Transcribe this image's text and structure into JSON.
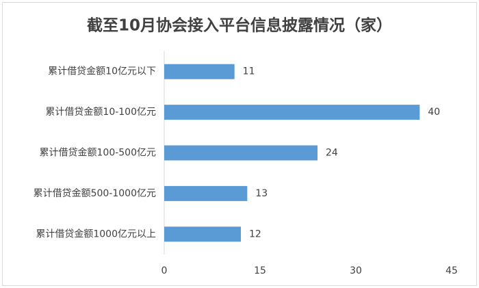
{
  "chart_data": {
    "type": "barh",
    "title": "截至10月协会接入平台信息披露情况（家）",
    "categories": [
      "累计借贷金额10亿元以下",
      "累计借贷金额10-100亿元",
      "累计借贷金额100-500亿元",
      "累计借贷金额500-1000亿元",
      "累计借贷金额1000亿元以上"
    ],
    "values": [
      11,
      40,
      24,
      13,
      12
    ],
    "color": "#5b9bd5",
    "xlim": [
      0,
      45
    ],
    "xticks": [
      0,
      15,
      30,
      45
    ],
    "grid": false
  }
}
